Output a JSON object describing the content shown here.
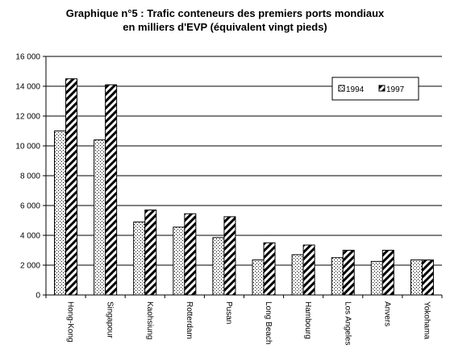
{
  "chart_data": {
    "type": "bar",
    "title": "Graphique n°5 : Trafic conteneurs des premiers ports mondiaux",
    "subtitle": "en milliers d'EVP (équivalent vingt pieds)",
    "categories": [
      "Hong-Kong",
      "Singapour",
      "Kaohsiung",
      "Rotterdam",
      "Pusan",
      "Long Beach",
      "Hambourg",
      "Los Angeles",
      "Anvers",
      "Yokohama"
    ],
    "series": [
      {
        "name": "1994",
        "values": [
          11000,
          10400,
          4900,
          4550,
          3850,
          2350,
          2700,
          2500,
          2250,
          2350
        ],
        "pattern": "dots"
      },
      {
        "name": "1997",
        "values": [
          14500,
          14100,
          5700,
          5450,
          5250,
          3500,
          3350,
          3000,
          3000,
          2350
        ],
        "pattern": "hatch"
      }
    ],
    "ylim": [
      0,
      16000
    ],
    "yticks": [
      "0",
      "2 000",
      "4 000",
      "6 000",
      "8 000",
      "10 000",
      "12 000",
      "14 000",
      "16 000"
    ],
    "grid": true,
    "legend_position": "top-right"
  }
}
